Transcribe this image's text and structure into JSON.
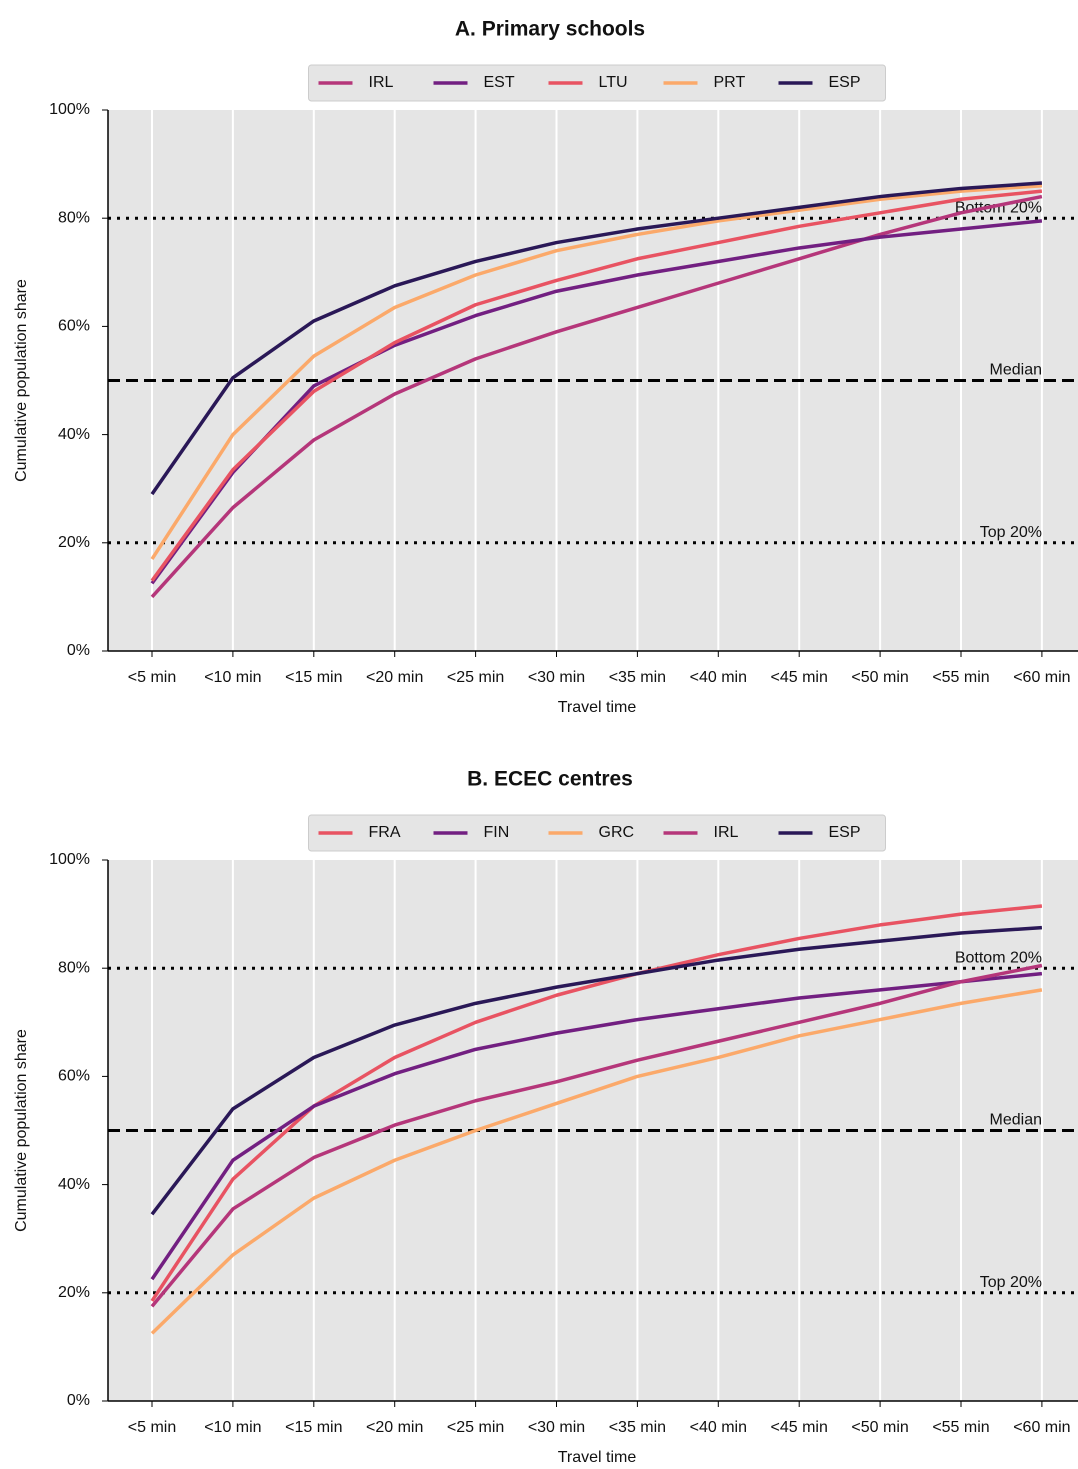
{
  "chart_data": [
    {
      "type": "line",
      "title": "A. Primary schools",
      "x_label": "Travel time",
      "y_label": "Cumulative population share",
      "categories": [
        "<5 min",
        "<10 min",
        "<15 min",
        "<20 min",
        "<25 min",
        "<30 min",
        "<35 min",
        "<40 min",
        "<45 min",
        "<50 min",
        "<55 min",
        "<60 min"
      ],
      "series": [
        {
          "name": "IRL",
          "color": "#b5367a",
          "values": [
            10,
            26.5,
            39,
            47.5,
            54,
            59,
            63.5,
            68,
            72.5,
            77,
            81,
            84
          ]
        },
        {
          "name": "EST",
          "color": "#721f81",
          "values": [
            12.5,
            33,
            49,
            56.5,
            62,
            66.5,
            69.5,
            72,
            74.5,
            76.5,
            78,
            79.5
          ]
        },
        {
          "name": "LTU",
          "color": "#e85362",
          "values": [
            13,
            33.5,
            48,
            57,
            64,
            68.5,
            72.5,
            75.5,
            78.5,
            81,
            83.5,
            85
          ]
        },
        {
          "name": "PRT",
          "color": "#fba96a",
          "values": [
            17,
            40,
            54.5,
            63.5,
            69.5,
            74,
            77,
            79.5,
            81.5,
            83.5,
            85,
            86
          ]
        },
        {
          "name": "ESP",
          "color": "#2a1857",
          "values": [
            29,
            50.5,
            61,
            67.5,
            72,
            75.5,
            78,
            80,
            82,
            84,
            85.5,
            86.5
          ]
        }
      ],
      "reference_lines": [
        {
          "value": 80,
          "label": "Bottom 20%",
          "style": "dotted"
        },
        {
          "value": 50,
          "label": "Median",
          "style": "dashed"
        },
        {
          "value": 20,
          "label": "Top 20%",
          "style": "dotted"
        }
      ],
      "ylim": [
        0,
        100
      ],
      "yticks": [
        {
          "value": 0,
          "label": "0%"
        },
        {
          "value": 20,
          "label": "20%"
        },
        {
          "value": 40,
          "label": "40%"
        },
        {
          "value": 60,
          "label": "60%"
        },
        {
          "value": 80,
          "label": "80%"
        },
        {
          "value": 100,
          "label": "100%"
        }
      ],
      "grid": "x",
      "legend": "upper center"
    },
    {
      "type": "line",
      "title": "B. ECEC centres",
      "x_label": "Travel time",
      "y_label": "Cumulative population share",
      "categories": [
        "<5 min",
        "<10 min",
        "<15 min",
        "<20 min",
        "<25 min",
        "<30 min",
        "<35 min",
        "<40 min",
        "<45 min",
        "<50 min",
        "<55 min",
        "<60 min"
      ],
      "series": [
        {
          "name": "FRA",
          "color": "#e85362",
          "values": [
            18.5,
            41,
            54.5,
            63.5,
            70,
            75,
            79,
            82.5,
            85.5,
            88,
            90,
            91.5
          ]
        },
        {
          "name": "FIN",
          "color": "#721f81",
          "values": [
            22.5,
            44.5,
            54.5,
            60.5,
            65,
            68,
            70.5,
            72.5,
            74.5,
            76,
            77.5,
            79
          ]
        },
        {
          "name": "GRC",
          "color": "#fba96a",
          "values": [
            12.5,
            27,
            37.5,
            44.5,
            50,
            55,
            60,
            63.5,
            67.5,
            70.5,
            73.5,
            76
          ]
        },
        {
          "name": "IRL",
          "color": "#b5367a",
          "values": [
            17.5,
            35.5,
            45,
            51,
            55.5,
            59,
            63,
            66.5,
            70,
            73.5,
            77.5,
            80.5
          ]
        },
        {
          "name": "ESP",
          "color": "#2a1857",
          "values": [
            34.5,
            54,
            63.5,
            69.5,
            73.5,
            76.5,
            79,
            81.5,
            83.5,
            85,
            86.5,
            87.5
          ]
        }
      ],
      "reference_lines": [
        {
          "value": 80,
          "label": "Bottom 20%",
          "style": "dotted"
        },
        {
          "value": 50,
          "label": "Median",
          "style": "dashed"
        },
        {
          "value": 20,
          "label": "Top 20%",
          "style": "dotted"
        }
      ],
      "ylim": [
        0,
        100
      ],
      "yticks": [
        {
          "value": 0,
          "label": "0%"
        },
        {
          "value": 20,
          "label": "20%"
        },
        {
          "value": 40,
          "label": "40%"
        },
        {
          "value": 60,
          "label": "60%"
        },
        {
          "value": 80,
          "label": "80%"
        },
        {
          "value": 100,
          "label": "100%"
        }
      ],
      "grid": "x",
      "legend": "upper center"
    }
  ]
}
